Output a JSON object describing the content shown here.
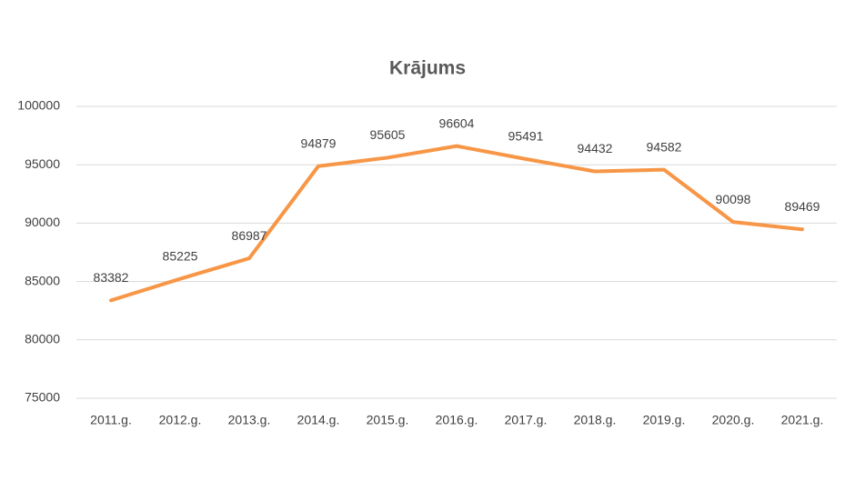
{
  "chart_data": {
    "type": "line",
    "title": "Krājums",
    "categories": [
      "2011.g.",
      "2012.g.",
      "2013.g.",
      "2014.g.",
      "2015.g.",
      "2016.g.",
      "2017.g.",
      "2018.g.",
      "2019.g.",
      "2020.g.",
      "2021.g."
    ],
    "values": [
      83382,
      85225,
      86987,
      94879,
      95605,
      96604,
      95491,
      94432,
      94582,
      90098,
      89469
    ],
    "color": "#f79646",
    "ylim": [
      75000,
      100000
    ],
    "yticks": [
      75000,
      80000,
      85000,
      90000,
      95000,
      100000
    ],
    "grid": true
  }
}
